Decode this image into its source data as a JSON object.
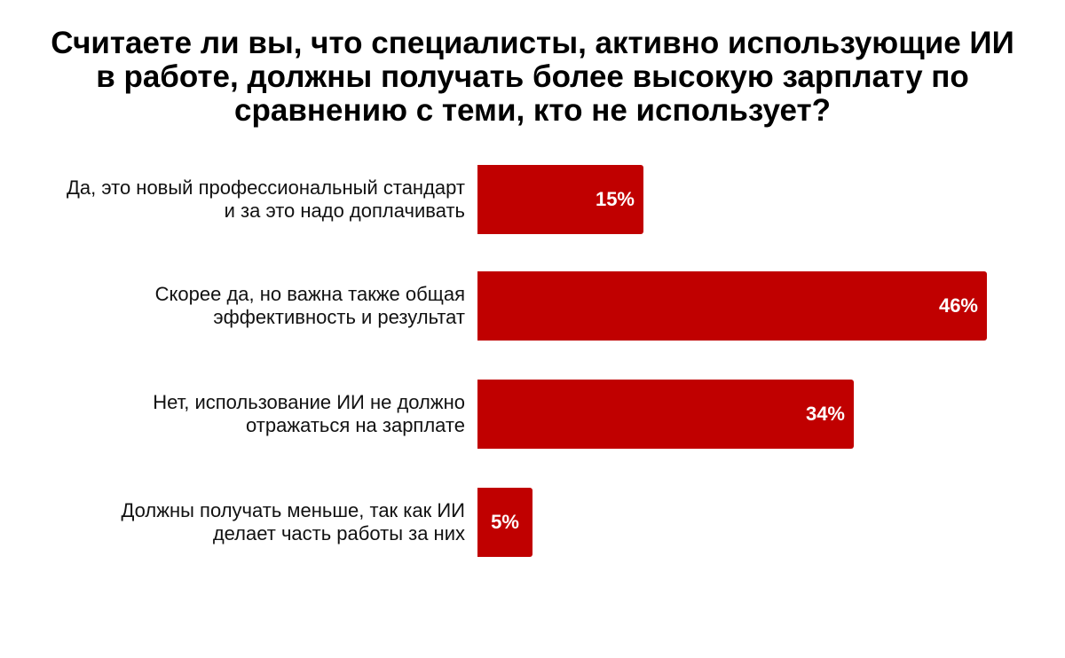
{
  "chart_data": {
    "type": "bar",
    "orientation": "horizontal",
    "title": "Считаете ли вы, что специалисты, активно использующие ИИ в работе, должны получать более высокую зарплату по сравнению с теми, кто не использует?",
    "categories": [
      "Да, это новый профессиональный стандарт и за это надо доплачивать",
      "Скорее да, но важна также общая эффективность и результат",
      "Нет, использование ИИ не должно отражаться на зарплате",
      "Должны получать меньше, так как ИИ делает часть работы за них"
    ],
    "values": [
      15,
      46,
      34,
      5
    ],
    "value_labels": [
      "15%",
      "46%",
      "34%",
      "5%"
    ],
    "unit": "%",
    "xlabel": "",
    "ylabel": "",
    "grid": false,
    "legend": null,
    "bar_color": "#c00000"
  },
  "title_lines": [
    "Считаете ли вы, что специалисты, активно использующие ИИ",
    "в работе, должны получать более высокую зарплату по",
    "сравнению с теми, кто не использует?"
  ],
  "rows": [
    {
      "label_lines": [
        "Да, это новый профессиональный стандарт",
        "и за это надо доплачивать"
      ],
      "value": 15,
      "value_label": "15%"
    },
    {
      "label_lines": [
        "Скорее да, но важна также общая",
        "эффективность и результат"
      ],
      "value": 46,
      "value_label": "46%"
    },
    {
      "label_lines": [
        "Нет, использование ИИ не должно",
        "отражаться на зарплате"
      ],
      "value": 34,
      "value_label": "34%"
    },
    {
      "label_lines": [
        "Должны получать меньше, так как ИИ",
        "делает часть работы за них"
      ],
      "value": 5,
      "value_label": "5%"
    }
  ],
  "colors": {
    "bar": "#c00000",
    "value_text": "#ffffff",
    "background": "#ffffff"
  }
}
